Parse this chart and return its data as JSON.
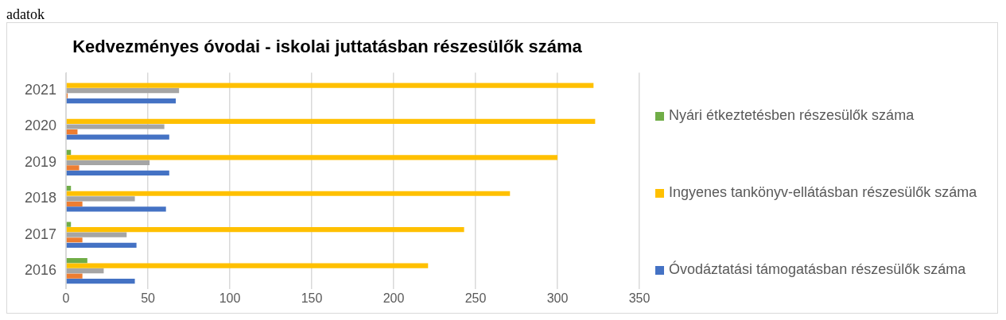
{
  "chart_data": {
    "type": "bar",
    "orientation": "horizontal",
    "title": "Kedvezményes óvodai - iskolai juttatásban részesülők száma",
    "annotations": [
      "adatok"
    ],
    "categories": [
      "2021",
      "2020",
      "2019",
      "2018",
      "2017",
      "2016"
    ],
    "series": [
      {
        "name": "Nyári étkeztetésben részesülők száma",
        "color": "#70ad47",
        "values": [
          0,
          0,
          3,
          3,
          3,
          13
        ]
      },
      {
        "name": "Ingyenes tankönyv-ellátásban részesülők száma",
        "color": "#ffc000",
        "values": [
          322,
          323,
          300,
          271,
          243,
          221
        ]
      },
      {
        "color": "#a5a5a5",
        "values": [
          69,
          60,
          51,
          42,
          37,
          23
        ]
      },
      {
        "color": "#ed7d31",
        "values": [
          1,
          7,
          8,
          10,
          10,
          10
        ]
      },
      {
        "name": "Óvodáztatási támogatásban részesülők száma",
        "color": "#4472c4",
        "values": [
          67,
          63,
          63,
          61,
          43,
          42
        ]
      }
    ],
    "xlim": [
      0,
      350
    ],
    "xticks": [
      0,
      50,
      100,
      150,
      200,
      250,
      300,
      350
    ],
    "grid": "x",
    "legend": "right"
  }
}
